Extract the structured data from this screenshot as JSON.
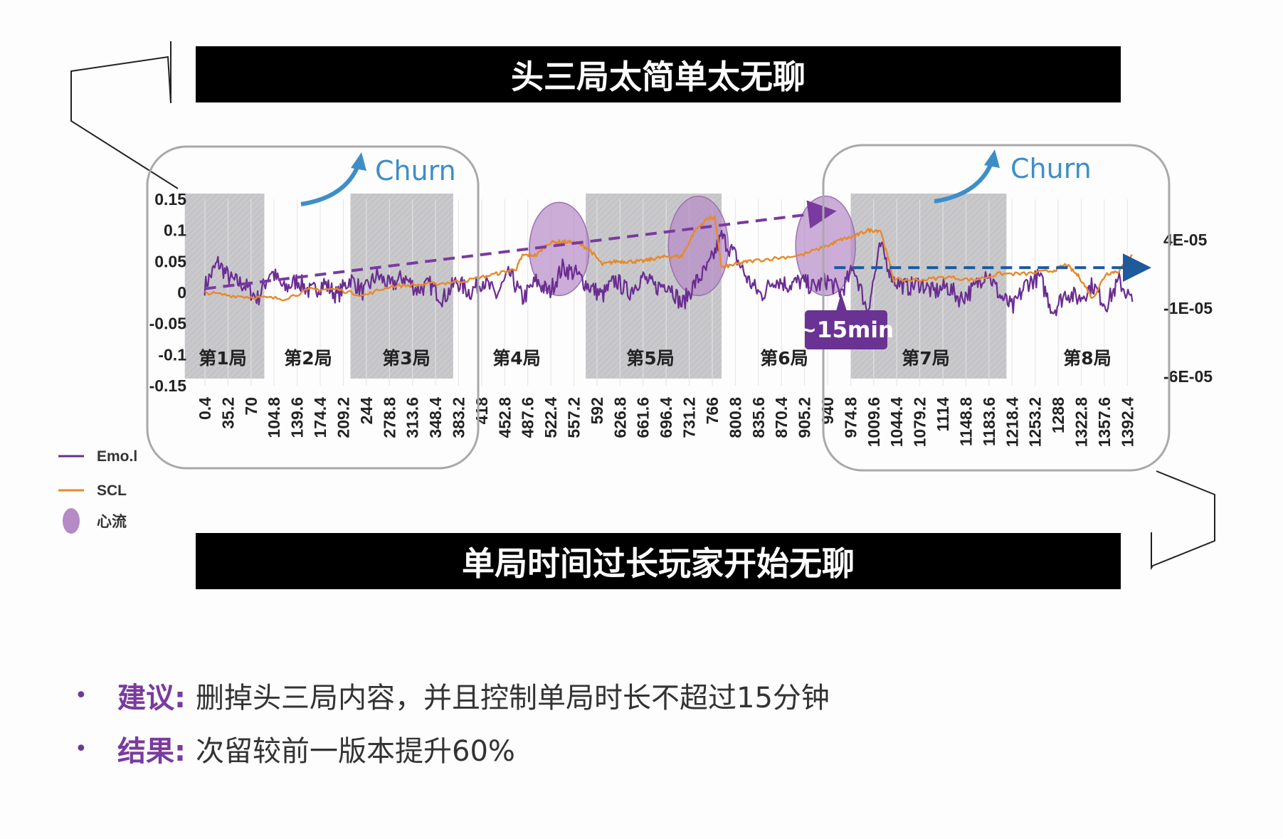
{
  "banners": {
    "top": "头三局太简单太无聊",
    "bottom": "单局时间过长玩家开始无聊"
  },
  "colors": {
    "emo": "#6a2d91",
    "scl": "#e8892b",
    "flow": "#b58ac6",
    "trend_purple": "#7a3aa0",
    "trend_blue": "#1e5a9c",
    "churn": "#3d8ec7",
    "callout": "#6a3292",
    "shade": "#c9c9cc"
  },
  "chart_data": {
    "type": "line",
    "left_axis": {
      "ticks": [
        "0.15",
        "0.1",
        "0.05",
        "0",
        "-0.05",
        "-0.1",
        "-0.15"
      ],
      "ylim": [
        -0.15,
        0.15
      ]
    },
    "right_axis": {
      "ticks": [
        "4E-05",
        "-1E-05",
        "-6E-05"
      ]
    },
    "x_ticks": [
      "0.4",
      "35.2",
      "70",
      "104.8",
      "139.6",
      "174.4",
      "209.2",
      "244",
      "278.8",
      "313.6",
      "348.4",
      "383.2",
      "418",
      "452.8",
      "487.6",
      "522.4",
      "557.2",
      "592",
      "626.8",
      "661.6",
      "696.4",
      "731.2",
      "766",
      "800.8",
      "835.6",
      "870.4",
      "905.2",
      "940",
      "974.8",
      "1009.6",
      "1044.4",
      "1079.2",
      "1114",
      "1148.8",
      "1183.6",
      "1218.4",
      "1253.2",
      "1288",
      "1322.8",
      "1357.6",
      "1392.4"
    ],
    "xlim": [
      0.4,
      1420
    ],
    "rounds": [
      "第1局",
      "第2局",
      "第3局",
      "第4局",
      "第5局",
      "第6局",
      "第7局",
      "第8局"
    ],
    "shaded_ranges": [
      [
        -30,
        90
      ],
      [
        220,
        375
      ],
      [
        575,
        780
      ],
      [
        975,
        1210
      ]
    ],
    "series": [
      {
        "name": "Emo.l",
        "key": "emo",
        "x": [
          0,
          20,
          40,
          60,
          80,
          100,
          120,
          140,
          160,
          180,
          200,
          220,
          240,
          260,
          280,
          300,
          320,
          340,
          360,
          380,
          400,
          420,
          440,
          460,
          480,
          500,
          520,
          540,
          560,
          580,
          600,
          620,
          640,
          660,
          680,
          700,
          720,
          740,
          760,
          780,
          800,
          820,
          840,
          860,
          880,
          900,
          920,
          940,
          960,
          980,
          1000,
          1020,
          1040,
          1060,
          1080,
          1100,
          1120,
          1140,
          1160,
          1180,
          1200,
          1220,
          1240,
          1260,
          1280,
          1300,
          1320,
          1340,
          1360,
          1380,
          1400
        ],
        "y": [
          0.01,
          0.048,
          0.02,
          0.012,
          -0.01,
          0.035,
          0.005,
          0.02,
          0.0,
          0.015,
          -0.005,
          0.022,
          0.0,
          0.028,
          0.01,
          0.025,
          0.005,
          0.012,
          -0.01,
          0.018,
          0.0,
          0.02,
          -0.005,
          0.03,
          -0.01,
          0.018,
          0.0,
          0.04,
          0.03,
          0.01,
          -0.005,
          0.02,
          0.0,
          0.025,
          0.008,
          0.015,
          -0.02,
          0.015,
          0.04,
          0.09,
          0.06,
          0.02,
          -0.005,
          0.022,
          0.012,
          0.018,
          0.008,
          0.02,
          0.0,
          0.04,
          -0.03,
          0.075,
          0.02,
          0.008,
          0.015,
          0.0,
          0.01,
          -0.01,
          0.005,
          0.035,
          -0.005,
          -0.025,
          0.015,
          0.025,
          -0.03,
          0.0,
          -0.01,
          0.012,
          -0.02,
          0.018,
          -0.015
        ]
      },
      {
        "name": "SCL",
        "key": "scl",
        "x": [
          0,
          40,
          80,
          120,
          160,
          200,
          240,
          280,
          320,
          360,
          400,
          440,
          470,
          480,
          500,
          520,
          540,
          560,
          580,
          600,
          620,
          640,
          660,
          680,
          700,
          720,
          740,
          760,
          770,
          780,
          800,
          820,
          860,
          900,
          940,
          960,
          980,
          1000,
          1020,
          1040,
          1080,
          1120,
          1160,
          1200,
          1240,
          1280,
          1300,
          1320,
          1340,
          1360,
          1380,
          1400
        ],
        "y": [
          0.0,
          -0.005,
          -0.008,
          -0.01,
          0.005,
          0.005,
          -0.005,
          0.01,
          0.012,
          0.015,
          0.02,
          0.03,
          0.038,
          0.06,
          0.06,
          0.08,
          0.082,
          0.08,
          0.07,
          0.045,
          0.05,
          0.05,
          0.05,
          0.055,
          0.058,
          0.058,
          0.1,
          0.12,
          0.12,
          0.04,
          0.045,
          0.05,
          0.055,
          0.06,
          0.075,
          0.085,
          0.09,
          0.1,
          0.1,
          0.02,
          0.02,
          0.025,
          0.02,
          0.03,
          0.03,
          0.035,
          0.045,
          0.025,
          -0.01,
          0.03,
          0.035,
          0.06
        ]
      }
    ],
    "flow_regions": [
      {
        "cx": 535,
        "cy": 0.07,
        "rx": 42,
        "ry": 0.075
      },
      {
        "cx": 745,
        "cy": 0.075,
        "rx": 42,
        "ry": 0.08
      },
      {
        "cx": 937,
        "cy": 0.075,
        "rx": 42,
        "ry": 0.08
      }
    ],
    "trend_lines": [
      {
        "color_key": "trend_purple",
        "from": [
          0,
          0.006
        ],
        "to": [
          945,
          0.13
        ]
      },
      {
        "color_key": "trend_blue",
        "from": [
          950,
          0.04
        ],
        "to": [
          1420,
          0.04
        ]
      }
    ],
    "callout": "~15min",
    "annotations": [
      "Churn",
      "Churn"
    ],
    "legend": {
      "placement": "bottom-left",
      "items": [
        "Emo.l",
        "SCL",
        "心流"
      ]
    }
  },
  "bullets": [
    {
      "key": "建议:",
      "text": "删掉头三局内容，并且控制单局时长不超过15分钟"
    },
    {
      "key": "结果:",
      "text": "次留较前一版本提升60%"
    }
  ]
}
